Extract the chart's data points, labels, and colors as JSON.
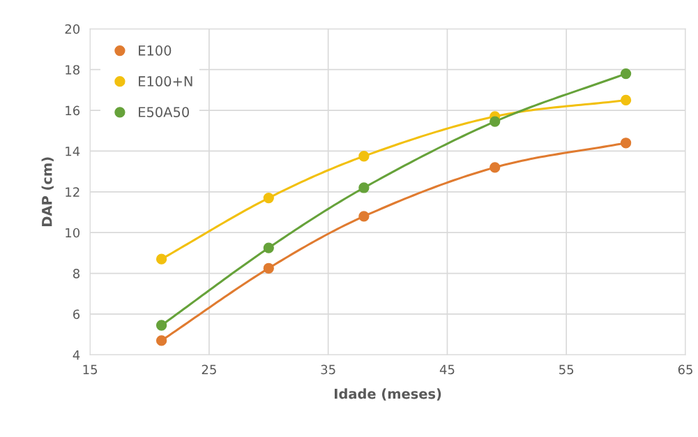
{
  "chart_data": {
    "type": "line",
    "xlabel": "Idade (meses)",
    "ylabel": "DAP (cm)",
    "x": [
      21,
      30,
      38,
      49,
      60
    ],
    "series": [
      {
        "name": "E100",
        "color": "#e07b30",
        "values": [
          4.7,
          8.25,
          10.8,
          13.2,
          14.4
        ]
      },
      {
        "name": "E100+N",
        "color": "#f2c00f",
        "values": [
          8.7,
          11.7,
          13.75,
          15.7,
          16.5
        ]
      },
      {
        "name": "E50A50",
        "color": "#66a23a",
        "values": [
          5.45,
          9.25,
          12.2,
          15.45,
          17.8
        ]
      }
    ],
    "xlim": [
      15,
      65
    ],
    "xticks": [
      15,
      25,
      35,
      45,
      55,
      65
    ],
    "ylim": [
      4,
      20
    ],
    "yticks": [
      4,
      6,
      8,
      10,
      12,
      14,
      16,
      18,
      20
    ],
    "grid": true,
    "legend": "top left",
    "marker": "circle",
    "line_style": "solid"
  }
}
